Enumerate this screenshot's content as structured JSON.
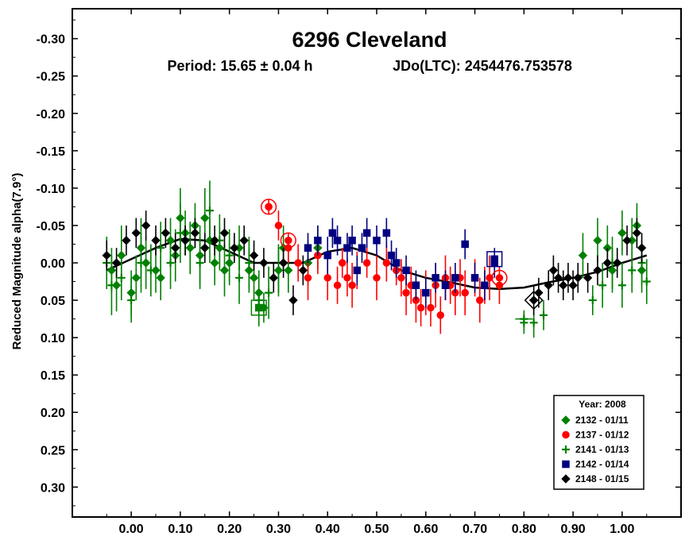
{
  "chart_data": {
    "type": "scatter",
    "title": "6296 Cleveland",
    "subtitle_period": "Period: 15.65 ± 0.04 h",
    "subtitle_epoch": "JDo(LTC): 2454476.753578",
    "xlabel": "",
    "ylabel": "Reduced Magnitude alpha(7.9°)",
    "xlim": [
      -0.12,
      1.12
    ],
    "ylim": [
      -0.34,
      0.34
    ],
    "y_inverted": true,
    "grid": false,
    "legend_position": "bottom-right",
    "legend_title": "Year: 2008",
    "x_ticks": [
      0.0,
      0.1,
      0.2,
      0.3,
      0.4,
      0.5,
      0.6,
      0.7,
      0.8,
      0.9,
      1.0
    ],
    "x_tick_labels": [
      "0.00",
      "0.10",
      "0.20",
      "0.30",
      "0.40",
      "0.50",
      "0.60",
      "0.70",
      "0.80",
      "0.90",
      "1.00"
    ],
    "y_ticks": [
      -0.3,
      -0.25,
      -0.2,
      -0.15,
      -0.1,
      -0.05,
      0.0,
      0.05,
      0.1,
      0.15,
      0.2,
      0.25,
      0.3
    ],
    "y_tick_labels": [
      "-0.30",
      "-0.25",
      "-0.20",
      "-0.15",
      "-0.10",
      "-0.05",
      "0.00",
      "0.05",
      "0.10",
      "0.15",
      "0.20",
      "0.25",
      "0.30"
    ],
    "fit_curve": {
      "x": [
        -0.05,
        0.0,
        0.05,
        0.1,
        0.15,
        0.2,
        0.25,
        0.3,
        0.35,
        0.4,
        0.45,
        0.5,
        0.55,
        0.6,
        0.65,
        0.7,
        0.75,
        0.8,
        0.85,
        0.9,
        0.95,
        1.0,
        1.05
      ],
      "y": [
        0.01,
        -0.005,
        -0.02,
        -0.032,
        -0.03,
        -0.015,
        0.0,
        0.0,
        0.0,
        -0.015,
        -0.02,
        -0.01,
        0.01,
        0.02,
        0.026,
        0.033,
        0.035,
        0.033,
        0.026,
        0.02,
        0.012,
        0.0,
        -0.01
      ]
    },
    "series": [
      {
        "name": "2132 - 01/11",
        "marker": "diamond",
        "color": "#008000",
        "x": [
          -0.04,
          -0.03,
          -0.02,
          0.0,
          0.01,
          0.02,
          0.03,
          0.05,
          0.06,
          0.08,
          0.09,
          0.1,
          0.11,
          0.12,
          0.13,
          0.14,
          0.15,
          0.16,
          0.17,
          0.18,
          0.19,
          0.2,
          0.22,
          0.24,
          0.25,
          0.26,
          0.27,
          0.3,
          0.31,
          0.32,
          0.36,
          0.38,
          0.92,
          0.95,
          0.97,
          0.98,
          1.0,
          1.02,
          1.03,
          1.04
        ],
        "y": [
          0.01,
          0.03,
          -0.01,
          0.04,
          0.02,
          -0.02,
          0.0,
          0.01,
          0.02,
          -0.03,
          -0.01,
          -0.06,
          -0.04,
          -0.02,
          -0.05,
          -0.01,
          -0.06,
          -0.03,
          0.0,
          -0.02,
          0.01,
          0.0,
          -0.02,
          0.01,
          0.02,
          0.04,
          0.06,
          0.01,
          -0.02,
          0.01,
          0.0,
          -0.02,
          -0.01,
          -0.03,
          -0.02,
          0.01,
          -0.04,
          -0.03,
          -0.05,
          0.01
        ],
        "err": [
          0.03,
          0.035,
          0.04,
          0.03,
          0.03,
          0.04,
          0.035,
          0.03,
          0.03,
          0.03,
          0.035,
          0.04,
          0.03,
          0.035,
          0.03,
          0.04,
          0.04,
          0.03,
          0.03,
          0.03,
          0.035,
          0.03,
          0.03,
          0.03,
          0.03,
          0.03,
          0.02,
          0.03,
          0.03,
          0.03,
          0.03,
          0.03,
          0.03,
          0.03,
          0.03,
          0.03,
          0.03,
          0.03,
          0.03,
          0.03
        ]
      },
      {
        "name": "2137 - 01/12",
        "marker": "circle",
        "color": "#ff0000",
        "x": [
          0.28,
          0.3,
          0.32,
          0.34,
          0.36,
          0.38,
          0.4,
          0.42,
          0.43,
          0.44,
          0.45,
          0.46,
          0.48,
          0.5,
          0.52,
          0.54,
          0.55,
          0.56,
          0.57,
          0.58,
          0.59,
          0.6,
          0.61,
          0.62,
          0.63,
          0.64,
          0.65,
          0.66,
          0.67,
          0.68,
          0.7,
          0.71,
          0.72,
          0.73,
          0.75
        ],
        "y": [
          -0.075,
          -0.05,
          -0.02,
          0.0,
          0.02,
          -0.01,
          0.02,
          0.03,
          0.0,
          0.02,
          0.03,
          0.01,
          0.0,
          0.02,
          0.0,
          0.01,
          0.02,
          0.04,
          0.03,
          0.05,
          0.06,
          0.04,
          0.06,
          0.03,
          0.07,
          0.02,
          0.03,
          0.04,
          0.02,
          0.04,
          0.02,
          0.05,
          0.03,
          0.02,
          0.03
        ],
        "err": [
          0.01,
          0.02,
          0.02,
          0.025,
          0.03,
          0.025,
          0.03,
          0.025,
          0.02,
          0.025,
          0.03,
          0.025,
          0.02,
          0.03,
          0.025,
          0.02,
          0.025,
          0.03,
          0.025,
          0.03,
          0.025,
          0.03,
          0.025,
          0.03,
          0.025,
          0.03,
          0.025,
          0.03,
          0.025,
          0.03,
          0.025,
          0.03,
          0.025,
          0.03,
          0.025
        ]
      },
      {
        "name": "2141 - 01/13",
        "marker": "plus",
        "color": "#008000",
        "x": [
          -0.05,
          -0.04,
          -0.02,
          0.0,
          0.02,
          0.04,
          0.06,
          0.08,
          0.1,
          0.12,
          0.14,
          0.16,
          0.18,
          0.2,
          0.22,
          0.24,
          0.26,
          0.28,
          0.3,
          0.8,
          0.82,
          0.84,
          0.94,
          0.96,
          0.98,
          1.0,
          1.02,
          1.04,
          1.05
        ],
        "y": [
          0.0,
          0.03,
          0.02,
          0.05,
          0.0,
          0.01,
          -0.02,
          0.0,
          -0.04,
          -0.02,
          0.0,
          -0.07,
          -0.03,
          -0.01,
          0.02,
          0.0,
          0.05,
          0.04,
          0.01,
          0.08,
          0.08,
          0.07,
          0.05,
          0.03,
          0.0,
          0.03,
          0.01,
          0.0,
          0.025
        ],
        "err": [
          0.035,
          0.04,
          0.03,
          0.03,
          0.04,
          0.035,
          0.035,
          0.035,
          0.04,
          0.035,
          0.035,
          0.04,
          0.035,
          0.035,
          0.035,
          0.035,
          0.035,
          0.035,
          0.035,
          0.015,
          0.02,
          0.02,
          0.02,
          0.03,
          0.035,
          0.03,
          0.03,
          0.03,
          0.03
        ]
      },
      {
        "name": "2142 - 01/14",
        "marker": "square",
        "color": "#000080",
        "x": [
          0.36,
          0.38,
          0.4,
          0.41,
          0.42,
          0.44,
          0.45,
          0.46,
          0.47,
          0.48,
          0.5,
          0.52,
          0.53,
          0.54,
          0.56,
          0.58,
          0.6,
          0.62,
          0.64,
          0.66,
          0.68,
          0.7,
          0.72,
          0.74
        ],
        "y": [
          -0.02,
          -0.03,
          -0.01,
          -0.04,
          -0.03,
          -0.02,
          -0.03,
          0.01,
          -0.02,
          -0.04,
          -0.03,
          -0.04,
          -0.01,
          0.0,
          0.01,
          0.03,
          0.04,
          0.02,
          0.03,
          0.02,
          -0.025,
          0.02,
          0.03,
          0.0
        ],
        "err": [
          0.02,
          0.02,
          0.025,
          0.02,
          0.02,
          0.02,
          0.02,
          0.02,
          0.02,
          0.02,
          0.02,
          0.02,
          0.02,
          0.02,
          0.02,
          0.02,
          0.02,
          0.02,
          0.02,
          0.02,
          0.02,
          0.02,
          0.02,
          0.02
        ]
      },
      {
        "name": "2148 - 01/15",
        "marker": "diamond",
        "color": "#000000",
        "x": [
          -0.05,
          -0.03,
          -0.01,
          0.01,
          0.03,
          0.05,
          0.07,
          0.09,
          0.11,
          0.13,
          0.15,
          0.17,
          0.19,
          0.21,
          0.23,
          0.25,
          0.27,
          0.29,
          0.31,
          0.33,
          0.35,
          0.82,
          0.83,
          0.85,
          0.86,
          0.87,
          0.88,
          0.89,
          0.9,
          0.91,
          0.93,
          0.95,
          0.97,
          0.99,
          1.01,
          1.03,
          1.04
        ],
        "y": [
          -0.01,
          0.0,
          -0.03,
          -0.04,
          -0.05,
          -0.03,
          -0.04,
          -0.02,
          -0.03,
          -0.04,
          -0.02,
          -0.03,
          -0.04,
          -0.02,
          -0.03,
          -0.01,
          0.0,
          0.02,
          0.0,
          0.05,
          0.01,
          0.05,
          0.04,
          0.03,
          0.01,
          0.02,
          0.03,
          0.02,
          0.03,
          0.02,
          0.02,
          0.01,
          0.0,
          0.0,
          -0.03,
          -0.04,
          -0.02
        ],
        "err": [
          0.02,
          0.02,
          0.02,
          0.02,
          0.02,
          0.02,
          0.02,
          0.02,
          0.02,
          0.02,
          0.02,
          0.02,
          0.02,
          0.02,
          0.02,
          0.02,
          0.02,
          0.02,
          0.02,
          0.02,
          0.02,
          0.02,
          0.02,
          0.02,
          0.02,
          0.02,
          0.02,
          0.02,
          0.02,
          0.02,
          0.02,
          0.02,
          0.02,
          0.02,
          0.02,
          0.02,
          0.02
        ]
      }
    ],
    "highlighted_points": [
      {
        "marker": "circle",
        "color": "#ff0000",
        "x": 0.28,
        "y": -0.075
      },
      {
        "marker": "square",
        "color": "#008000",
        "x": 0.26,
        "y": 0.06
      },
      {
        "marker": "plus",
        "color": "#008000",
        "x": 0.8,
        "y": 0.075
      },
      {
        "marker": "diamond",
        "color": "#000000",
        "x": 0.82,
        "y": 0.05
      },
      {
        "marker": "square",
        "color": "#000080",
        "x": 0.74,
        "y": -0.005
      },
      {
        "marker": "circle",
        "color": "#ff0000",
        "x": 0.32,
        "y": -0.03
      },
      {
        "marker": "circle",
        "color": "#ff0000",
        "x": 0.75,
        "y": 0.02
      }
    ]
  }
}
